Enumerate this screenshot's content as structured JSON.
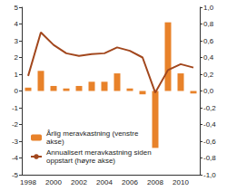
{
  "chart_data": {
    "type": "bar",
    "categories": [
      "1998",
      null,
      "2000",
      null,
      "2002",
      null,
      "2004",
      null,
      "2006",
      null,
      "2008",
      null,
      "2010",
      null
    ],
    "series": [
      {
        "name": "Årlig meravkastning (venstre akse)",
        "type": "bar",
        "color": "#e8822a",
        "values": [
          0.2,
          1.2,
          0.3,
          0.15,
          0.3,
          0.55,
          0.55,
          1.05,
          0.15,
          -0.2,
          -3.4,
          4.1,
          1.05,
          -0.15
        ]
      },
      {
        "name": "Annualisert meravkastning siden oppstart (høyre akse)",
        "type": "line",
        "color": "#a2471d",
        "axis": "y2",
        "line_style": "solid",
        "values": [
          0.18,
          0.7,
          0.55,
          0.45,
          0.42,
          0.44,
          0.45,
          0.52,
          0.48,
          0.4,
          -0.02,
          0.25,
          0.32,
          0.28
        ]
      }
    ],
    "ylim": [
      -5,
      5
    ],
    "yticks": [
      -5,
      -4,
      -3,
      -2,
      -1,
      0,
      1,
      2,
      3,
      4,
      5
    ],
    "y2lim": [
      -1,
      1
    ],
    "y2ticks": [
      {
        "value": -1,
        "label": "-1,0"
      },
      {
        "value": -0.8,
        "label": "-0,8"
      },
      {
        "value": -0.6,
        "label": "-0,6"
      },
      {
        "value": -0.4,
        "label": "-0,4"
      },
      {
        "value": -0.2,
        "label": "-0,2"
      },
      {
        "value": 0,
        "label": "0,0"
      },
      {
        "value": 0.2,
        "label": "0,2"
      },
      {
        "value": 0.4,
        "label": "0,4"
      },
      {
        "value": 0.6,
        "label": "0,6"
      },
      {
        "value": 0.8,
        "label": "0,8"
      },
      {
        "value": 1,
        "label": "1,0"
      }
    ],
    "grid": false,
    "legend": "lower left"
  }
}
